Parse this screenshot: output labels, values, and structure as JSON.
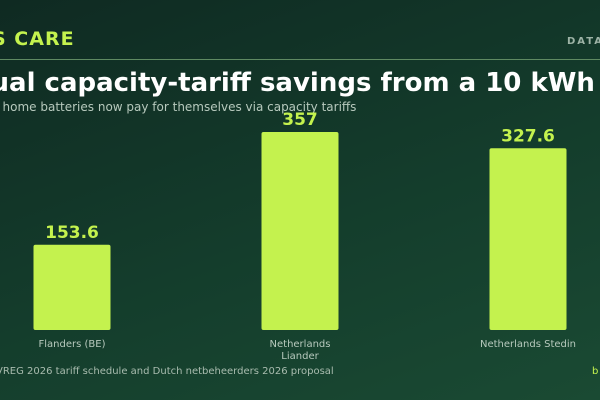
{
  "header": {
    "brand": "S CARE",
    "tag": "DATA",
    "title": "nual capacity-tariff savings from a 10 kWh",
    "subtitle": "t home batteries now pay for themselves via capacity tariffs"
  },
  "footer": {
    "source": "VREG 2026 tariff schedule and Dutch netbeheerders 2026 proposal",
    "credit": "b"
  },
  "colors": {
    "bar": "#c4f24e",
    "value_label": "#c4f24e",
    "category_label": "#b7c9bd"
  },
  "chart_data": {
    "type": "bar",
    "categories": [
      [
        "Flanders (BE)"
      ],
      [
        "Netherlands",
        "Liander"
      ],
      [
        "Netherlands Stedin"
      ]
    ],
    "values": [
      153.6,
      357,
      327.6
    ],
    "value_labels": [
      "153.6",
      "357",
      "327.6"
    ],
    "title": "nual capacity-tariff savings from a 10 kWh",
    "ylim": [
      0,
      357
    ],
    "grid": false,
    "legend": "none"
  }
}
